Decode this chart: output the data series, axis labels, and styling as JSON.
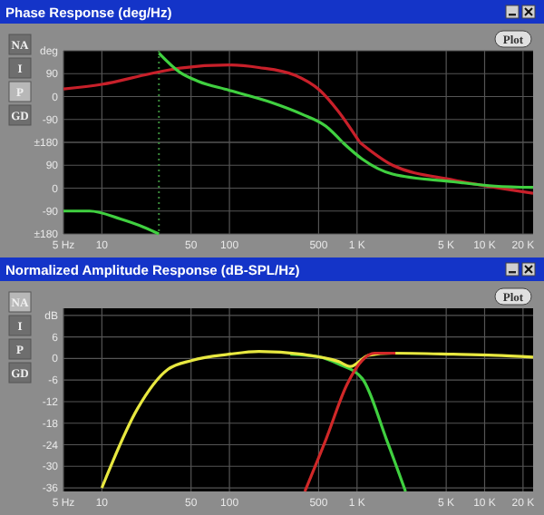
{
  "chart_data": [
    {
      "type": "line",
      "title": "Phase Response (deg/Hz)",
      "log": "x",
      "grid": true,
      "tick_labels": "y",
      "annotations": [
        "NA",
        "I",
        "P",
        "GD",
        "Plot"
      ],
      "xlim": [
        5,
        24000
      ],
      "xticks": [
        {
          "value": 5,
          "label": null
        },
        {
          "value": 10,
          "label": null
        },
        {
          "value": 50,
          "label": null
        },
        {
          "value": 100,
          "label": null
        },
        {
          "value": 500,
          "label": null
        },
        {
          "value": 1000,
          "label": null
        },
        {
          "value": 5000,
          "label": null
        },
        {
          "value": 10000,
          "label": null
        },
        {
          "value": 20000,
          "label": null
        }
      ],
      "ylim": [
        -180,
        180
      ],
      "yticks": [
        {
          "value": 180,
          "label": "deg"
        },
        90,
        0,
        -90,
        {
          "value": -180,
          "label": "±180"
        }
      ],
      "ref_lines": [
        {
          "axis": "x",
          "value": 28,
          "color": "#3a8a3a",
          "line_style": "dotted"
        }
      ],
      "series": [
        {
          "color": "#c8202a",
          "x": [
            5,
            10,
            24,
            41,
            99,
            170,
            330,
            510,
            713,
            1050
          ],
          "values": [
            30,
            48,
            90,
            112,
            124,
            114,
            83,
            25,
            -58,
            -180
          ]
        },
        {
          "color": "#40d040",
          "x": [
            28,
            41,
            57,
            99,
            213,
            369,
            571,
            770
          ],
          "values": [
            171,
            95,
            60,
            25,
            -23,
            -69,
            -117,
            -180
          ]
        }
      ]
    },
    {
      "type": "line",
      "log": "x",
      "grid": true,
      "xlim": [
        5,
        24000
      ],
      "xticks": [
        {
          "value": 5,
          "label": "5 Hz"
        },
        10,
        50,
        100,
        500,
        {
          "value": 1000,
          "label": "1 K"
        },
        {
          "value": 5000,
          "label": "5 K"
        },
        {
          "value": 10000,
          "label": "10 K"
        },
        {
          "value": 20000,
          "label": "20 K"
        }
      ],
      "ylim": [
        -180,
        180
      ],
      "yticks": [
        {
          "value": 180,
          "label": null
        },
        90,
        0,
        -90,
        {
          "value": -180,
          "label": "±180"
        }
      ],
      "ref_lines": [
        {
          "axis": "x",
          "value": 28,
          "color": "#3a8a3a",
          "line_style": "dotted"
        }
      ],
      "series": [
        {
          "color": "#c8202a",
          "x": [
            1050,
            1900,
            5700,
            12000,
            24000
          ],
          "values": [
            180,
            90,
            32,
            3,
            -20
          ]
        },
        {
          "color": "#40d040",
          "x": [
            5,
            8,
            14,
            21,
            28
          ],
          "values": [
            -90,
            -90,
            -121,
            -152,
            -180
          ]
        },
        {
          "color": "#40d040",
          "x": [
            770,
            1100,
            1900,
            5700,
            12000,
            24000
          ],
          "values": [
            180,
            114,
            55,
            25,
            8,
            3
          ]
        }
      ]
    },
    {
      "type": "line",
      "title": "Normalized Amplitude Response (dB-SPL/Hz)",
      "log": "x",
      "grid": true,
      "annotations": [
        "NA",
        "I",
        "P",
        "GD",
        "Plot"
      ],
      "xlim": [
        5,
        24000
      ],
      "xticks": [
        {
          "value": 5,
          "label": "5 Hz"
        },
        10,
        50,
        100,
        500,
        {
          "value": 1000,
          "label": "1 K"
        },
        {
          "value": 5000,
          "label": "5 K"
        },
        {
          "value": 10000,
          "label": "10 K"
        },
        {
          "value": 20000,
          "label": "20 K"
        }
      ],
      "ylim": [
        -37,
        14
      ],
      "yticks": [
        {
          "value": 12,
          "label": "dB"
        },
        6,
        0,
        -6,
        -12,
        -18,
        -24,
        -30,
        -36
      ],
      "series": [
        {
          "color": "#40d040",
          "x": [
            300,
            500,
            713,
            1100,
            1700,
            2400
          ],
          "values": [
            1.2,
            0.5,
            -1.5,
            -5.6,
            -22.5,
            -37
          ]
        },
        {
          "color": "#e8e840",
          "x": [
            10,
            19,
            33,
            51,
            99,
            170,
            369,
            713,
            890,
            1230,
            1900,
            5700,
            12000,
            24000
          ],
          "values": [
            -36,
            -14,
            -3,
            -0.5,
            1.2,
            2,
            1.2,
            -0.8,
            -2.2,
            0.9,
            1.5,
            1.2,
            0.9,
            0.4
          ]
        },
        {
          "color": "#d02828",
          "x": [
            390,
            571,
            835,
            1100,
            1370,
            2000
          ],
          "values": [
            -37,
            -22.5,
            -7.2,
            -0.5,
            1.5,
            1.5
          ]
        }
      ]
    }
  ]
}
